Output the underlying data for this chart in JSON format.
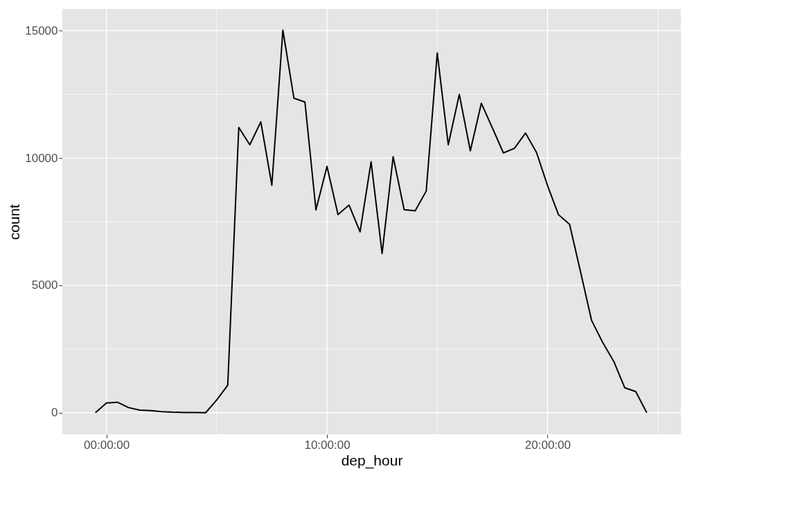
{
  "chart_data": {
    "type": "line",
    "xlabel": "dep_hour",
    "ylabel": "count",
    "x": [
      -0.5,
      0,
      0.5,
      1,
      1.5,
      2,
      2.5,
      3,
      3.5,
      4,
      4.5,
      5,
      5.5,
      6,
      6.5,
      7,
      7.5,
      8,
      8.5,
      9,
      9.5,
      10,
      10.5,
      11,
      11.5,
      12,
      12.5,
      13,
      13.5,
      14,
      14.5,
      15,
      15.5,
      16,
      16.5,
      17,
      17.5,
      18,
      18.5,
      19,
      19.5,
      20,
      20.5,
      21,
      21.5,
      22,
      22.5,
      23,
      23.5,
      24,
      24.5
    ],
    "series": [
      {
        "color": "#000000",
        "values": [
          0,
          380,
          410,
          200,
          100,
          80,
          40,
          20,
          10,
          10,
          0,
          500,
          1080,
          11200,
          10520,
          11420,
          8930,
          15020,
          12350,
          12200,
          7960,
          9670,
          7780,
          8150,
          7100,
          9850,
          6250,
          10050,
          7970,
          7930,
          8700,
          14120,
          10520,
          12500,
          10280,
          12150,
          11180,
          10200,
          10380,
          10980,
          10220,
          8920,
          7770,
          7400,
          5520,
          3620,
          2760,
          2020,
          980,
          830,
          0
        ]
      }
    ],
    "xlim": [
      -2,
      26.05
    ],
    "ylim": [
      -850,
      15850
    ],
    "xticks": [
      {
        "value": 0,
        "label": "00:00:00"
      },
      {
        "value": 5,
        "label": null
      },
      {
        "value": 10,
        "label": "10:00:00"
      },
      {
        "value": 15,
        "label": null
      },
      {
        "value": 20,
        "label": "20:00:00"
      },
      {
        "value": 25,
        "label": null
      }
    ],
    "yticks": [
      0,
      {
        "value": 2500,
        "label": null
      },
      5000,
      {
        "value": 7500,
        "label": null
      },
      10000,
      {
        "value": 12500,
        "label": null
      },
      15000
    ],
    "grid": true,
    "marker": "none",
    "line_style": "solid"
  }
}
